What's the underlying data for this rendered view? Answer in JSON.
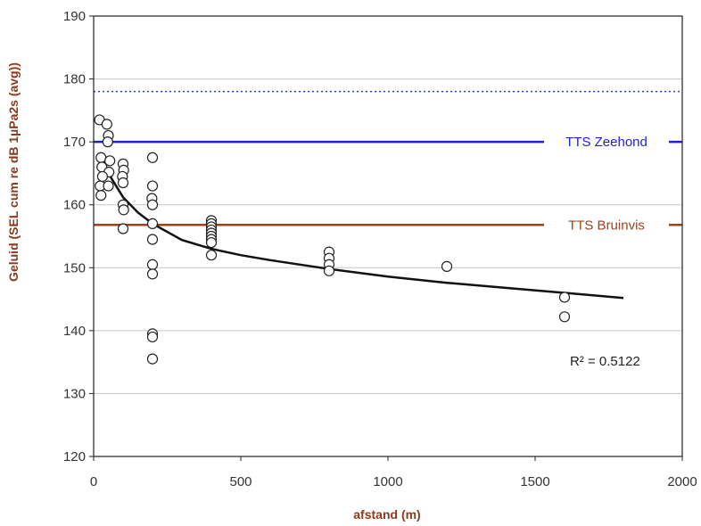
{
  "chart_data": {
    "type": "scatter",
    "xlabel": "afstand (m)",
    "ylabel": "Geluid   (SEL cum re dB 1µPa2s (avg))",
    "xlim": [
      0,
      2000
    ],
    "ylim": [
      120,
      190
    ],
    "x_ticks": [
      0,
      500,
      1000,
      1500,
      2000
    ],
    "y_ticks": [
      120,
      130,
      140,
      150,
      160,
      170,
      180,
      190
    ],
    "grid": true,
    "points": [
      {
        "x": 20,
        "y": 173.5
      },
      {
        "x": 45,
        "y": 172.8
      },
      {
        "x": 50,
        "y": 171
      },
      {
        "x": 48,
        "y": 170
      },
      {
        "x": 25,
        "y": 167.5
      },
      {
        "x": 55,
        "y": 167
      },
      {
        "x": 28,
        "y": 166
      },
      {
        "x": 52,
        "y": 165.2
      },
      {
        "x": 30,
        "y": 164.5
      },
      {
        "x": 22,
        "y": 163
      },
      {
        "x": 50,
        "y": 163
      },
      {
        "x": 25,
        "y": 161.5
      },
      {
        "x": 100,
        "y": 166.5
      },
      {
        "x": 102,
        "y": 165.5
      },
      {
        "x": 98,
        "y": 164.5
      },
      {
        "x": 100,
        "y": 163.5
      },
      {
        "x": 100,
        "y": 160
      },
      {
        "x": 102,
        "y": 159.2
      },
      {
        "x": 100,
        "y": 156.2
      },
      {
        "x": 200,
        "y": 167.5
      },
      {
        "x": 200,
        "y": 163
      },
      {
        "x": 198,
        "y": 161
      },
      {
        "x": 200,
        "y": 160
      },
      {
        "x": 200,
        "y": 157
      },
      {
        "x": 200,
        "y": 154.5
      },
      {
        "x": 200,
        "y": 150.5
      },
      {
        "x": 200,
        "y": 149
      },
      {
        "x": 200,
        "y": 139.5
      },
      {
        "x": 200,
        "y": 139
      },
      {
        "x": 200,
        "y": 135.5
      },
      {
        "x": 400,
        "y": 157.5
      },
      {
        "x": 400,
        "y": 157
      },
      {
        "x": 400,
        "y": 156.5
      },
      {
        "x": 400,
        "y": 156
      },
      {
        "x": 400,
        "y": 155.5
      },
      {
        "x": 400,
        "y": 155
      },
      {
        "x": 400,
        "y": 154.5
      },
      {
        "x": 400,
        "y": 154
      },
      {
        "x": 400,
        "y": 152
      },
      {
        "x": 800,
        "y": 152.5
      },
      {
        "x": 800,
        "y": 151.5
      },
      {
        "x": 800,
        "y": 150.5
      },
      {
        "x": 800,
        "y": 149.5
      },
      {
        "x": 1200,
        "y": 150.2
      },
      {
        "x": 1600,
        "y": 145.3
      },
      {
        "x": 1600,
        "y": 142.2
      }
    ],
    "trendline": {
      "x": [
        20,
        50,
        100,
        150,
        200,
        300,
        400,
        500,
        600,
        800,
        1000,
        1200,
        1400,
        1600,
        1800
      ],
      "y": [
        168.3,
        165.0,
        161.2,
        158.8,
        157.0,
        154.4,
        153.0,
        152.0,
        151.2,
        149.8,
        148.6,
        147.6,
        146.8,
        146.0,
        145.2
      ]
    },
    "annotations": {
      "r2": "R² = 0.5122"
    },
    "reference_lines": [
      {
        "y": 178,
        "style": "dotted",
        "color": "#3a3ae0",
        "label": ""
      },
      {
        "y": 170,
        "style": "solid",
        "color": "#1f1fd6",
        "label": "TTS Zeehond"
      },
      {
        "y": 156.8,
        "style": "solid",
        "color": "#a0411b",
        "label": "TTS Bruinvis"
      }
    ]
  }
}
